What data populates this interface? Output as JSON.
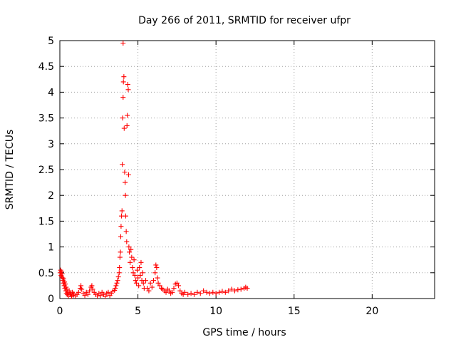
{
  "chart_data": {
    "type": "scatter",
    "title": "Day 266 of 2011, SRMTID for receiver ufpr",
    "xlabel": "GPS time / hours",
    "ylabel": "SRMTID / TECUs",
    "xlim": [
      0,
      24
    ],
    "ylim": [
      0,
      5
    ],
    "xticks": [
      0,
      5,
      10,
      15,
      20
    ],
    "yticks": [
      0,
      0.5,
      1,
      1.5,
      2,
      2.5,
      3,
      3.5,
      4,
      4.5,
      5
    ],
    "xtick_labels": [
      "0",
      "5",
      "10",
      "15",
      "20"
    ],
    "ytick_labels": [
      "0",
      "0.5",
      "1",
      "1.5",
      "2",
      "2.5",
      "3",
      "3.5",
      "4",
      "4.5",
      "5"
    ],
    "grid": true,
    "marker": "+",
    "series": [
      {
        "name": "SRMTID",
        "color": "#ff0000",
        "points": [
          [
            0.02,
            0.5
          ],
          [
            0.05,
            0.55
          ],
          [
            0.08,
            0.45
          ],
          [
            0.1,
            0.52
          ],
          [
            0.12,
            0.42
          ],
          [
            0.15,
            0.48
          ],
          [
            0.18,
            0.4
          ],
          [
            0.2,
            0.35
          ],
          [
            0.22,
            0.3
          ],
          [
            0.25,
            0.38
          ],
          [
            0.28,
            0.25
          ],
          [
            0.3,
            0.32
          ],
          [
            0.32,
            0.2
          ],
          [
            0.35,
            0.28
          ],
          [
            0.38,
            0.15
          ],
          [
            0.4,
            0.22
          ],
          [
            0.42,
            0.1
          ],
          [
            0.45,
            0.18
          ],
          [
            0.48,
            0.08
          ],
          [
            0.5,
            0.12
          ],
          [
            0.55,
            0.05
          ],
          [
            0.6,
            0.15
          ],
          [
            0.65,
            0.08
          ],
          [
            0.7,
            0.1
          ],
          [
            0.75,
            0.04
          ],
          [
            0.8,
            0.12
          ],
          [
            0.85,
            0.06
          ],
          [
            0.9,
            0.09
          ],
          [
            1.0,
            0.05
          ],
          [
            1.1,
            0.08
          ],
          [
            1.2,
            0.12
          ],
          [
            1.3,
            0.2
          ],
          [
            1.35,
            0.25
          ],
          [
            1.4,
            0.18
          ],
          [
            1.5,
            0.1
          ],
          [
            1.6,
            0.06
          ],
          [
            1.7,
            0.12
          ],
          [
            1.8,
            0.08
          ],
          [
            1.9,
            0.15
          ],
          [
            2.0,
            0.22
          ],
          [
            2.05,
            0.25
          ],
          [
            2.1,
            0.18
          ],
          [
            2.2,
            0.12
          ],
          [
            2.3,
            0.08
          ],
          [
            2.4,
            0.05
          ],
          [
            2.5,
            0.1
          ],
          [
            2.6,
            0.06
          ],
          [
            2.7,
            0.12
          ],
          [
            2.8,
            0.08
          ],
          [
            2.9,
            0.04
          ],
          [
            3.0,
            0.1
          ],
          [
            3.1,
            0.12
          ],
          [
            3.2,
            0.06
          ],
          [
            3.3,
            0.1
          ],
          [
            3.4,
            0.14
          ],
          [
            3.5,
            0.16
          ],
          [
            3.55,
            0.2
          ],
          [
            3.6,
            0.25
          ],
          [
            3.65,
            0.3
          ],
          [
            3.7,
            0.35
          ],
          [
            3.75,
            0.42
          ],
          [
            3.8,
            0.5
          ],
          [
            3.82,
            0.6
          ],
          [
            3.85,
            0.8
          ],
          [
            3.88,
            0.9
          ],
          [
            3.9,
            1.2
          ],
          [
            3.92,
            1.4
          ],
          [
            3.95,
            1.6
          ],
          [
            3.98,
            1.7
          ],
          [
            4.0,
            2.6
          ],
          [
            4.02,
            3.5
          ],
          [
            4.05,
            3.9
          ],
          [
            4.07,
            4.2
          ],
          [
            4.05,
            4.95
          ],
          [
            4.1,
            4.3
          ],
          [
            4.12,
            3.3
          ],
          [
            4.15,
            2.45
          ],
          [
            4.18,
            2.25
          ],
          [
            4.2,
            2.0
          ],
          [
            4.22,
            1.6
          ],
          [
            4.25,
            1.3
          ],
          [
            4.28,
            1.1
          ],
          [
            4.3,
            3.35
          ],
          [
            4.32,
            3.55
          ],
          [
            4.35,
            4.15
          ],
          [
            4.38,
            4.05
          ],
          [
            4.4,
            2.4
          ],
          [
            4.42,
            1.0
          ],
          [
            4.45,
            0.9
          ],
          [
            4.5,
            0.7
          ],
          [
            4.55,
            0.95
          ],
          [
            4.6,
            0.8
          ],
          [
            4.65,
            0.6
          ],
          [
            4.7,
            0.5
          ],
          [
            4.75,
            0.75
          ],
          [
            4.8,
            0.45
          ],
          [
            4.85,
            0.35
          ],
          [
            4.9,
            0.3
          ],
          [
            4.95,
            0.55
          ],
          [
            5.0,
            0.4
          ],
          [
            5.05,
            0.25
          ],
          [
            5.1,
            0.6
          ],
          [
            5.15,
            0.45
          ],
          [
            5.2,
            0.7
          ],
          [
            5.25,
            0.35
          ],
          [
            5.3,
            0.5
          ],
          [
            5.35,
            0.3
          ],
          [
            5.4,
            0.2
          ],
          [
            5.5,
            0.35
          ],
          [
            5.6,
            0.2
          ],
          [
            5.7,
            0.15
          ],
          [
            5.8,
            0.3
          ],
          [
            5.9,
            0.22
          ],
          [
            6.0,
            0.35
          ],
          [
            6.1,
            0.5
          ],
          [
            6.15,
            0.65
          ],
          [
            6.2,
            0.6
          ],
          [
            6.25,
            0.4
          ],
          [
            6.3,
            0.3
          ],
          [
            6.4,
            0.25
          ],
          [
            6.5,
            0.2
          ],
          [
            6.6,
            0.18
          ],
          [
            6.7,
            0.15
          ],
          [
            6.8,
            0.12
          ],
          [
            6.9,
            0.18
          ],
          [
            7.0,
            0.15
          ],
          [
            7.1,
            0.1
          ],
          [
            7.2,
            0.12
          ],
          [
            7.3,
            0.2
          ],
          [
            7.4,
            0.28
          ],
          [
            7.5,
            0.3
          ],
          [
            7.6,
            0.25
          ],
          [
            7.7,
            0.15
          ],
          [
            7.8,
            0.1
          ],
          [
            7.9,
            0.08
          ],
          [
            8.0,
            0.12
          ],
          [
            8.2,
            0.08
          ],
          [
            8.4,
            0.1
          ],
          [
            8.6,
            0.08
          ],
          [
            8.8,
            0.12
          ],
          [
            9.0,
            0.1
          ],
          [
            9.2,
            0.15
          ],
          [
            9.4,
            0.12
          ],
          [
            9.6,
            0.1
          ],
          [
            9.8,
            0.12
          ],
          [
            10.0,
            0.1
          ],
          [
            10.2,
            0.12
          ],
          [
            10.4,
            0.14
          ],
          [
            10.6,
            0.12
          ],
          [
            10.8,
            0.15
          ],
          [
            11.0,
            0.18
          ],
          [
            11.2,
            0.15
          ],
          [
            11.4,
            0.17
          ],
          [
            11.6,
            0.18
          ],
          [
            11.8,
            0.2
          ],
          [
            11.9,
            0.22
          ],
          [
            12.0,
            0.2
          ]
        ]
      }
    ]
  }
}
